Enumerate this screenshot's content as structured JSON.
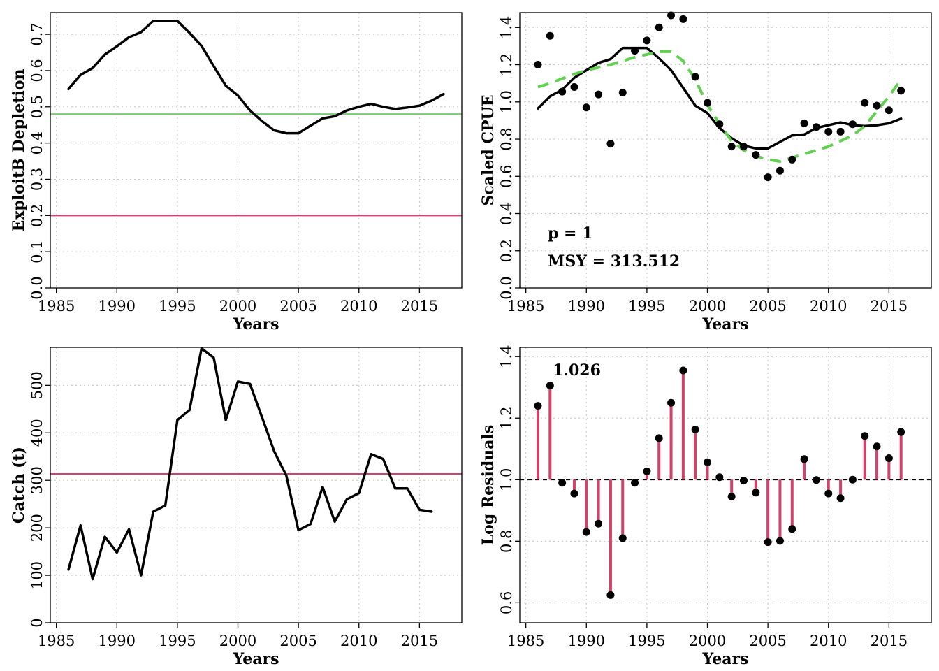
{
  "chart_data": [
    {
      "id": "depletion",
      "type": "line",
      "xlabel": "Years",
      "ylabel": "ExploitB Depletion",
      "xlim": [
        1984.5,
        2018.5
      ],
      "ylim": [
        0,
        0.76
      ],
      "xticks": [
        1985,
        1990,
        1995,
        2000,
        2005,
        2010,
        2015
      ],
      "yticks": [
        0.0,
        0.1,
        0.2,
        0.3,
        0.4,
        0.5,
        0.6,
        0.7
      ],
      "ytick_labels": [
        "0.0",
        "0.1",
        "0.2",
        "0.3",
        "0.4",
        "0.5",
        "0.6",
        "0.7"
      ],
      "grid": true,
      "series": [
        {
          "color": "#000000",
          "style": "solid",
          "x": [
            1986,
            1987,
            1988,
            1989,
            1990,
            1991,
            1992,
            1993,
            1994,
            1995,
            1996,
            1997,
            1998,
            1999,
            2000,
            2001,
            2002,
            2003,
            2004,
            2005,
            2006,
            2007,
            2008,
            2009,
            2010,
            2011,
            2012,
            2013,
            2014,
            2015,
            2016,
            2017
          ],
          "y": [
            0.549,
            0.588,
            0.607,
            0.644,
            0.667,
            0.692,
            0.706,
            0.737,
            0.737,
            0.737,
            0.704,
            0.668,
            0.612,
            0.558,
            0.531,
            0.49,
            0.46,
            0.435,
            0.427,
            0.427,
            0.448,
            0.468,
            0.474,
            0.49,
            0.5,
            0.508,
            0.5,
            0.494,
            0.498,
            0.503,
            0.517,
            0.535
          ]
        }
      ],
      "hlines": [
        {
          "y": 0.48,
          "color": "#7cc972"
        },
        {
          "y": 0.2,
          "color": "#d1426a"
        }
      ]
    },
    {
      "id": "cpue",
      "type": "scatter",
      "xlabel": "Years",
      "ylabel": "Scaled CPUE",
      "xlim": [
        1984.5,
        2018.5
      ],
      "ylim": [
        0,
        1.48
      ],
      "xticks": [
        1985,
        1990,
        1995,
        2000,
        2005,
        2010,
        2015
      ],
      "yticks": [
        0.0,
        0.2,
        0.4,
        0.6,
        0.8,
        1.0,
        1.2,
        1.4
      ],
      "ytick_labels": [
        "0.0",
        "0.2",
        "0.4",
        "0.6",
        "0.8",
        "1.0",
        "1.2",
        "1.4"
      ],
      "grid": true,
      "annotations": [
        "p = 1",
        "MSY = 313.512"
      ],
      "points": {
        "x": [
          1986,
          1987,
          1988,
          1989,
          1990,
          1991,
          1992,
          1993,
          1994,
          1995,
          1996,
          1997,
          1998,
          1999,
          2000,
          2001,
          2002,
          2003,
          2004,
          2005,
          2006,
          2007,
          2008,
          2009,
          2010,
          2011,
          2012,
          2013,
          2014,
          2015,
          2016
        ],
        "y": [
          1.2,
          1.355,
          1.055,
          1.08,
          0.97,
          1.04,
          0.775,
          1.05,
          1.275,
          1.33,
          1.4,
          1.465,
          1.445,
          1.135,
          0.995,
          0.88,
          0.76,
          0.76,
          0.715,
          0.595,
          0.63,
          0.69,
          0.885,
          0.865,
          0.84,
          0.84,
          0.88,
          0.995,
          0.98,
          0.955,
          1.06
        ]
      },
      "series": [
        {
          "color": "#000000",
          "style": "solid",
          "x": [
            1986,
            1987,
            1988,
            1989,
            1990,
            1991,
            1992,
            1993,
            1994,
            1995,
            1996,
            1997,
            1998,
            1999,
            2000,
            2001,
            2002,
            2003,
            2004,
            2005,
            2006,
            2007,
            2008,
            2009,
            2010,
            2011,
            2012,
            2013,
            2014,
            2015,
            2016
          ],
          "y": [
            0.965,
            1.03,
            1.065,
            1.13,
            1.17,
            1.21,
            1.23,
            1.29,
            1.29,
            1.29,
            1.235,
            1.17,
            1.075,
            0.98,
            0.94,
            0.86,
            0.805,
            0.765,
            0.75,
            0.75,
            0.785,
            0.82,
            0.825,
            0.86,
            0.875,
            0.89,
            0.875,
            0.87,
            0.875,
            0.885,
            0.91
          ]
        },
        {
          "color": "#61d04f",
          "style": "dashed",
          "x": [
            1986,
            1987,
            1988,
            1989,
            1990,
            1991,
            1992,
            1993,
            1994,
            1995,
            1996,
            1997,
            1998,
            1999,
            2000,
            2001,
            2002,
            2003,
            2004,
            2005,
            2006,
            2007,
            2008,
            2009,
            2010,
            2011,
            2012,
            2013,
            2014,
            2015,
            2016
          ],
          "y": [
            1.08,
            1.1,
            1.125,
            1.15,
            1.17,
            1.185,
            1.2,
            1.22,
            1.24,
            1.255,
            1.27,
            1.27,
            1.22,
            1.12,
            0.985,
            0.88,
            0.79,
            0.74,
            0.71,
            0.69,
            0.68,
            0.7,
            0.72,
            0.74,
            0.76,
            0.79,
            0.82,
            0.87,
            0.95,
            1.03,
            1.12
          ]
        }
      ]
    },
    {
      "id": "catch",
      "type": "line",
      "xlabel": "Years",
      "ylabel": "Catch (t)",
      "xlim": [
        1984.5,
        2018.5
      ],
      "ylim": [
        0,
        580
      ],
      "xticks": [
        1985,
        1990,
        1995,
        2000,
        2005,
        2010,
        2015
      ],
      "yticks": [
        0,
        100,
        200,
        300,
        400,
        500
      ],
      "ytick_labels": [
        "0",
        "100",
        "200",
        "300",
        "400",
        "500"
      ],
      "grid": true,
      "series": [
        {
          "color": "#000000",
          "style": "solid",
          "x": [
            1986,
            1987,
            1988,
            1989,
            1990,
            1991,
            1992,
            1993,
            1994,
            1995,
            1996,
            1997,
            1998,
            1999,
            2000,
            2001,
            2002,
            2003,
            2004,
            2005,
            2006,
            2007,
            2008,
            2009,
            2010,
            2011,
            2012,
            2013,
            2014,
            2015,
            2016
          ],
          "y": [
            112,
            205,
            92,
            181,
            148,
            197,
            100,
            234,
            247,
            427,
            448,
            578,
            558,
            427,
            508,
            503,
            432,
            361,
            310,
            195,
            208,
            286,
            213,
            260,
            273,
            355,
            345,
            283,
            283,
            238,
            234
          ]
        }
      ],
      "hlines": [
        {
          "y": 313.512,
          "color": "#d1426a"
        }
      ]
    },
    {
      "id": "residuals",
      "type": "stem",
      "xlabel": "Years",
      "ylabel": "Log Residuals",
      "xlim": [
        1984.5,
        2018.5
      ],
      "ylim": [
        0.535,
        1.43
      ],
      "xticks": [
        1985,
        1990,
        1995,
        2000,
        2005,
        2010,
        2015
      ],
      "yticks": [
        0.6,
        0.8,
        1.0,
        1.2,
        1.4
      ],
      "ytick_labels": [
        "0.6",
        "0.8",
        "1.0",
        "1.2",
        "1.4"
      ],
      "grid": true,
      "baseline": 1.0,
      "annotation": "1.026",
      "stem_color": "#d1426a",
      "points": {
        "x": [
          1986,
          1987,
          1988,
          1989,
          1990,
          1991,
          1992,
          1993,
          1994,
          1995,
          1996,
          1997,
          1998,
          1999,
          2000,
          2001,
          2002,
          2003,
          2004,
          2005,
          2006,
          2007,
          2008,
          2009,
          2010,
          2011,
          2012,
          2013,
          2014,
          2015,
          2016
        ],
        "y": [
          1.24,
          1.306,
          0.99,
          0.955,
          0.83,
          0.857,
          0.625,
          0.81,
          0.99,
          1.027,
          1.135,
          1.25,
          1.355,
          1.163,
          1.057,
          1.008,
          0.945,
          0.997,
          0.958,
          0.797,
          0.801,
          0.84,
          1.067,
          0.999,
          0.955,
          0.94,
          1.0,
          1.142,
          1.108,
          1.07,
          1.155
        ]
      }
    }
  ]
}
